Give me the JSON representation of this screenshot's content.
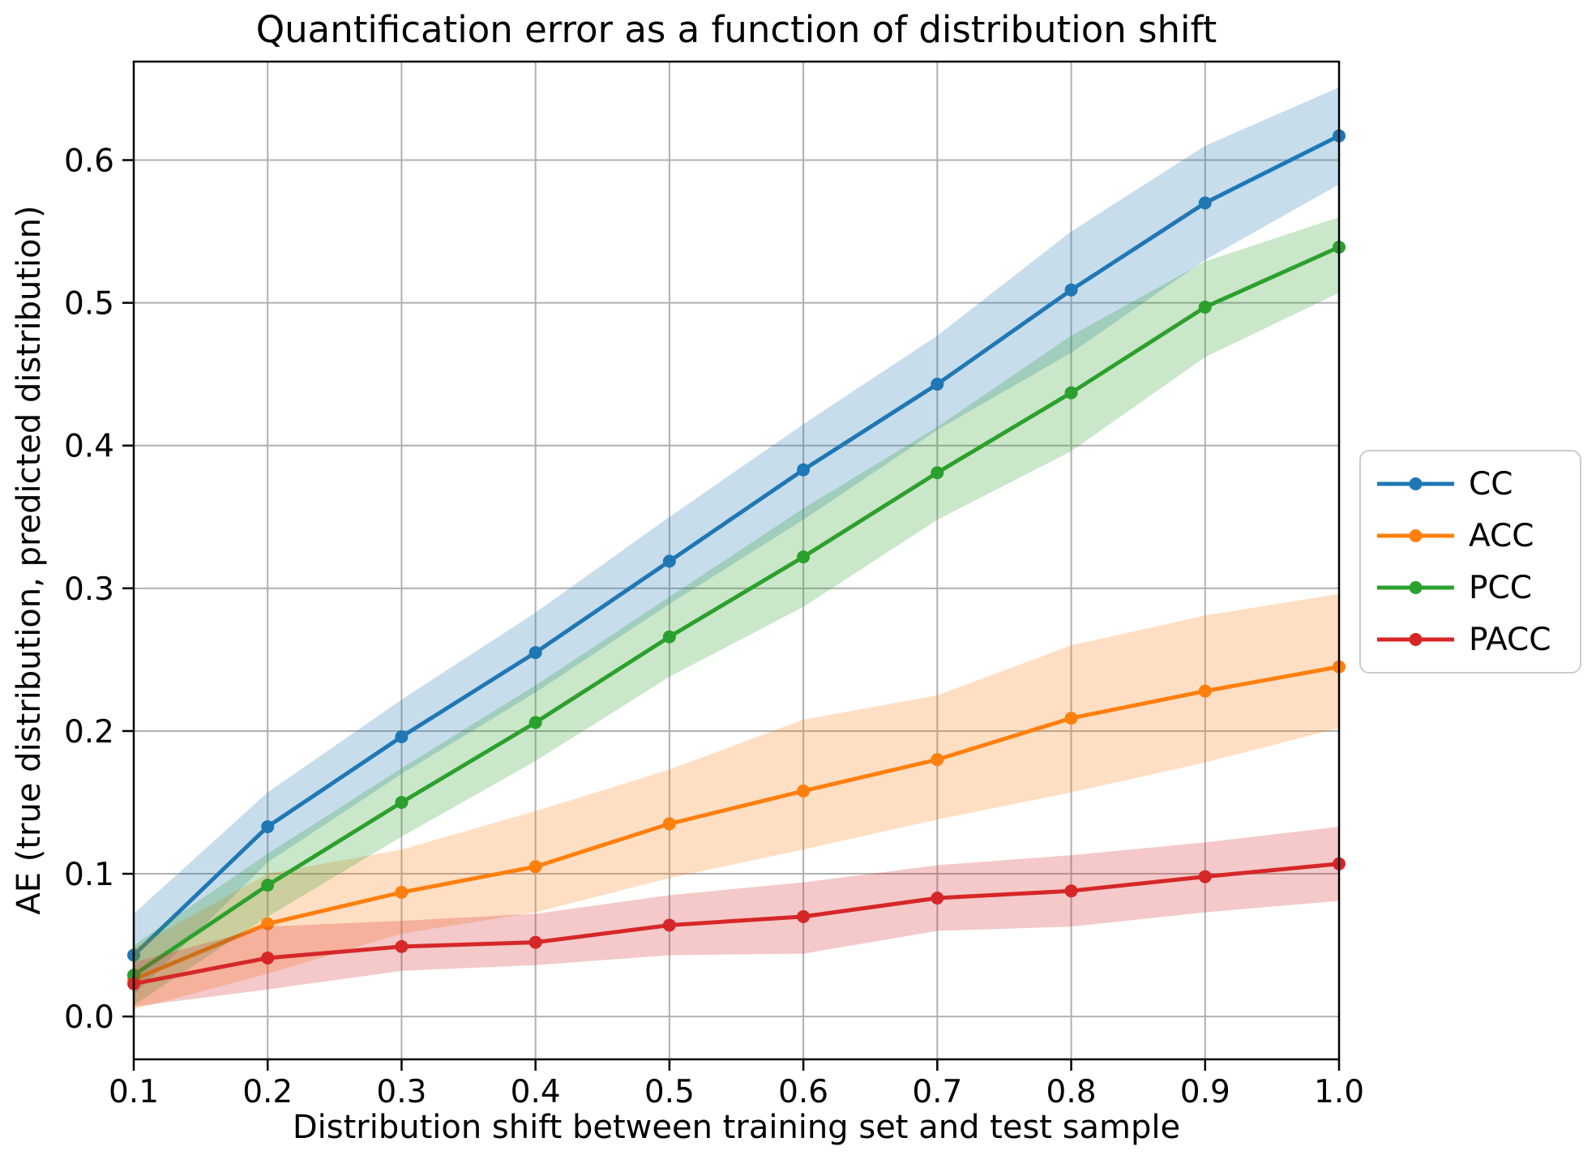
{
  "figure": {
    "title": "Quantification error as a function of distribution shift",
    "xlabel": "Distribution shift between training set and test sample",
    "ylabel": "AE (true distribution, predicted distribution)"
  },
  "chart_data": {
    "type": "line",
    "title": "Quantification error as a function of distribution shift",
    "xlabel": "Distribution shift between training set and test sample",
    "ylabel": "AE (true distribution, predicted distribution)",
    "x": [
      0.1,
      0.2,
      0.3,
      0.4,
      0.5,
      0.6,
      0.7,
      0.8,
      0.9,
      1.0
    ],
    "x_tick_labels": [
      "0.1",
      "0.2",
      "0.3",
      "0.4",
      "0.5",
      "0.6",
      "0.7",
      "0.8",
      "0.9",
      "1.0"
    ],
    "y_ticks": [
      0.0,
      0.1,
      0.2,
      0.3,
      0.4,
      0.5,
      0.6
    ],
    "y_tick_labels": [
      "0.0",
      "0.1",
      "0.2",
      "0.3",
      "0.4",
      "0.5",
      "0.6"
    ],
    "xlim": [
      0.1,
      1.0
    ],
    "ylim": [
      -0.03,
      0.669
    ],
    "grid": true,
    "legend_position": "center-right-outside",
    "band_opacity": 0.25,
    "grid_color": "#b0b0b0",
    "series": [
      {
        "name": "CC",
        "color": "#1f77b4",
        "values": [
          0.043,
          0.133,
          0.196,
          0.255,
          0.319,
          0.383,
          0.443,
          0.509,
          0.57,
          0.617
        ],
        "band_lo": [
          0.015,
          0.108,
          0.17,
          0.227,
          0.289,
          0.348,
          0.411,
          0.465,
          0.53,
          0.583
        ],
        "band_hi": [
          0.072,
          0.157,
          0.222,
          0.283,
          0.35,
          0.415,
          0.477,
          0.55,
          0.61,
          0.651
        ]
      },
      {
        "name": "ACC",
        "color": "#ff7f0e",
        "values": [
          0.026,
          0.065,
          0.087,
          0.105,
          0.135,
          0.158,
          0.18,
          0.209,
          0.228,
          0.245
        ],
        "band_lo": [
          0.005,
          0.03,
          0.058,
          0.073,
          0.097,
          0.117,
          0.138,
          0.157,
          0.178,
          0.202
        ],
        "band_hi": [
          0.048,
          0.1,
          0.117,
          0.144,
          0.173,
          0.208,
          0.225,
          0.26,
          0.281,
          0.296
        ]
      },
      {
        "name": "PCC",
        "color": "#2ca02c",
        "values": [
          0.029,
          0.092,
          0.15,
          0.206,
          0.266,
          0.322,
          0.381,
          0.437,
          0.497,
          0.539
        ],
        "band_lo": [
          0.008,
          0.07,
          0.126,
          0.179,
          0.238,
          0.287,
          0.348,
          0.396,
          0.462,
          0.507
        ],
        "band_hi": [
          0.05,
          0.114,
          0.174,
          0.232,
          0.294,
          0.356,
          0.413,
          0.477,
          0.529,
          0.56
        ]
      },
      {
        "name": "PACC",
        "color": "#d62728",
        "values": [
          0.023,
          0.041,
          0.049,
          0.052,
          0.064,
          0.07,
          0.083,
          0.088,
          0.098,
          0.107
        ],
        "band_lo": [
          0.007,
          0.019,
          0.032,
          0.036,
          0.043,
          0.044,
          0.06,
          0.063,
          0.073,
          0.081
        ],
        "band_hi": [
          0.038,
          0.063,
          0.067,
          0.072,
          0.085,
          0.094,
          0.106,
          0.113,
          0.122,
          0.133
        ]
      }
    ]
  }
}
